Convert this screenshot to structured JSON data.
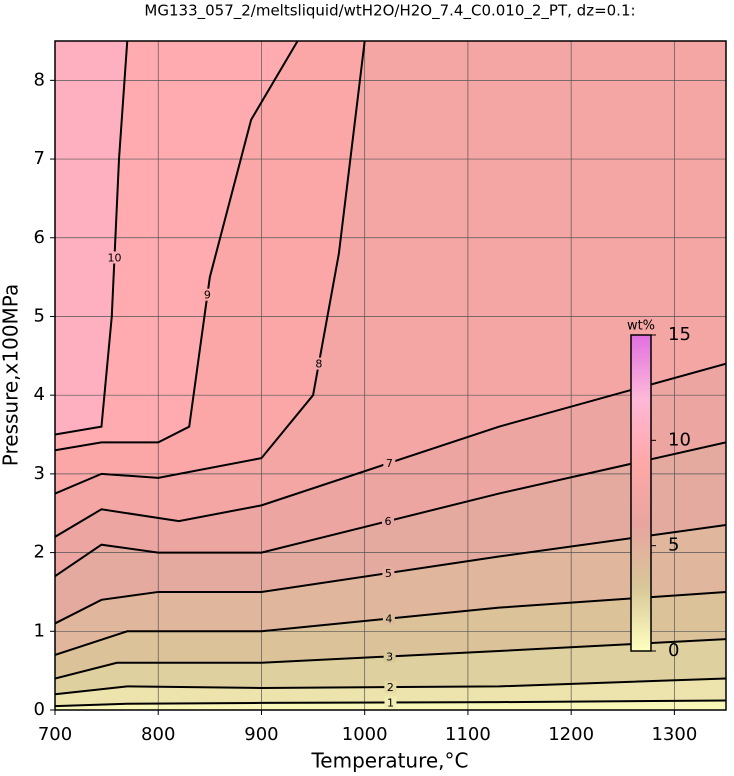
{
  "chart_data": {
    "type": "contour",
    "title": "MG133_057_2/meltsliquid/wtH2O/H2O_7.4_C0.010_2_PT, dz=0.1:",
    "xlabel": "Temperature,°C",
    "ylabel": "Pressure,x100MPa",
    "xlim": [
      700,
      1350
    ],
    "ylim": [
      0,
      8.5
    ],
    "xticks": [
      700,
      800,
      900,
      1000,
      1100,
      1200,
      1300
    ],
    "yticks": [
      0,
      1,
      2,
      3,
      4,
      5,
      6,
      7,
      8
    ],
    "grid": true,
    "contours": [
      {
        "level": 1,
        "x": [
          700,
          770,
          900,
          1130,
          1350
        ],
        "y": [
          0.05,
          0.08,
          0.09,
          0.1,
          0.12
        ]
      },
      {
        "level": 2,
        "x": [
          700,
          770,
          900,
          1130,
          1350
        ],
        "y": [
          0.2,
          0.3,
          0.28,
          0.3,
          0.4
        ]
      },
      {
        "level": 3,
        "x": [
          700,
          760,
          900,
          1130,
          1350
        ],
        "y": [
          0.4,
          0.6,
          0.6,
          0.75,
          0.9
        ]
      },
      {
        "level": 4,
        "x": [
          700,
          770,
          900,
          1130,
          1350
        ],
        "y": [
          0.7,
          1.0,
          1.0,
          1.3,
          1.5
        ]
      },
      {
        "level": 5,
        "x": [
          700,
          745,
          800,
          900,
          1130,
          1350
        ],
        "y": [
          1.1,
          1.4,
          1.5,
          1.5,
          1.95,
          2.35
        ]
      },
      {
        "level": 6,
        "x": [
          700,
          745,
          800,
          900,
          1130,
          1350
        ],
        "y": [
          1.7,
          2.1,
          2.0,
          2.0,
          2.75,
          3.4
        ]
      },
      {
        "level": 7,
        "x": [
          700,
          745,
          820,
          900,
          1130,
          1350
        ],
        "y": [
          2.2,
          2.55,
          2.4,
          2.6,
          3.6,
          4.4
        ]
      },
      {
        "level": 8,
        "x": [
          700,
          745,
          800,
          900,
          950,
          975,
          1000
        ],
        "y": [
          2.75,
          3.0,
          2.95,
          3.2,
          4.0,
          5.8,
          8.5
        ]
      },
      {
        "level": 9,
        "x": [
          700,
          745,
          800,
          830,
          850,
          890,
          935
        ],
        "y": [
          3.3,
          3.4,
          3.4,
          3.6,
          5.5,
          7.5,
          8.5
        ]
      },
      {
        "level": 10,
        "x": [
          700,
          745,
          755,
          762,
          770
        ],
        "y": [
          3.5,
          3.6,
          5.0,
          7.0,
          8.5
        ]
      }
    ],
    "colorbar": {
      "label": "wt%",
      "lim": [
        0,
        15
      ],
      "ticks": [
        0,
        5,
        10,
        15
      ],
      "colors": [
        "#ffffc0",
        "#d8c898",
        "#e8a4a0",
        "#ffa8a8",
        "#ffb8d8",
        "#e070e0"
      ]
    }
  }
}
